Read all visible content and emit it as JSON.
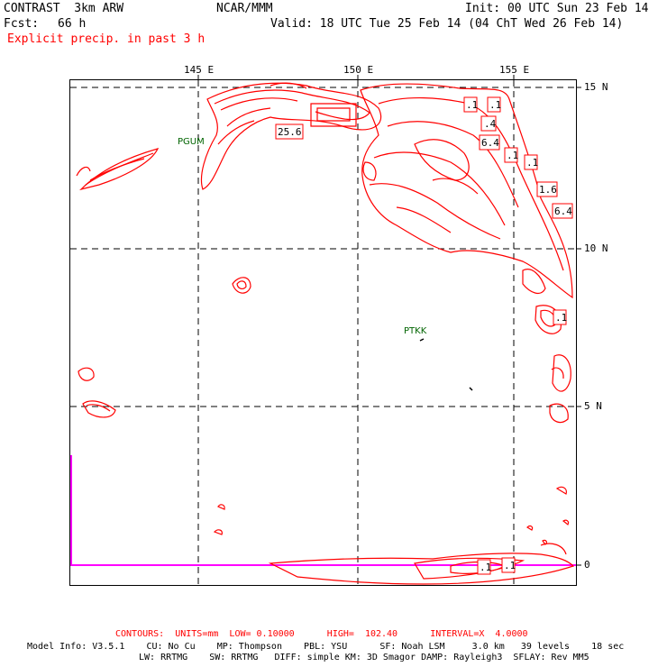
{
  "header": {
    "model": "CONTRAST  3km ARW",
    "center": "NCAR/MMM",
    "init": "Init: 00 UTC Sun 23 Feb 14",
    "fcst_label": "Fcst:",
    "fcst_value": "66 h",
    "valid": "Valid: 18 UTC Tue 25 Feb 14 (04 ChT Wed 26 Feb 14)",
    "field": "Explicit precip. in past 3 h"
  },
  "map": {
    "lon_ticks": [
      "145 E",
      "150 E",
      "155 E"
    ],
    "lat_ticks": [
      "15 N",
      "10 N",
      "5 N",
      "0"
    ],
    "stations": [
      "PGUM",
      "PTKK"
    ],
    "contour_labels": [
      ".1",
      ".1",
      ".4",
      "6.4",
      ".1",
      ".1",
      "1.6",
      "6.4",
      ".1",
      "25.6",
      ".1",
      ".1"
    ],
    "colors": {
      "contour": "#ff0000",
      "grid": "#000000",
      "station": "#006400",
      "boundary": "#ff00ff",
      "equator": "#5555ff"
    }
  },
  "footer": {
    "contours_line": "CONTOURS:  UNITS=mm  LOW= 0.10000      HIGH=  102.40      INTERVAL=X  4.0000",
    "model_info_1": "Model Info: V3.5.1    CU: No Cu    MP: Thompson    PBL: YSU      SF: Noah LSM     3.0 km   39 levels    18 sec",
    "model_info_2": "LW: RRTMG    SW: RRTMG   DIFF: simple KM: 3D Smagor DAMP: Rayleigh3  SFLAY: Rev MM5"
  }
}
